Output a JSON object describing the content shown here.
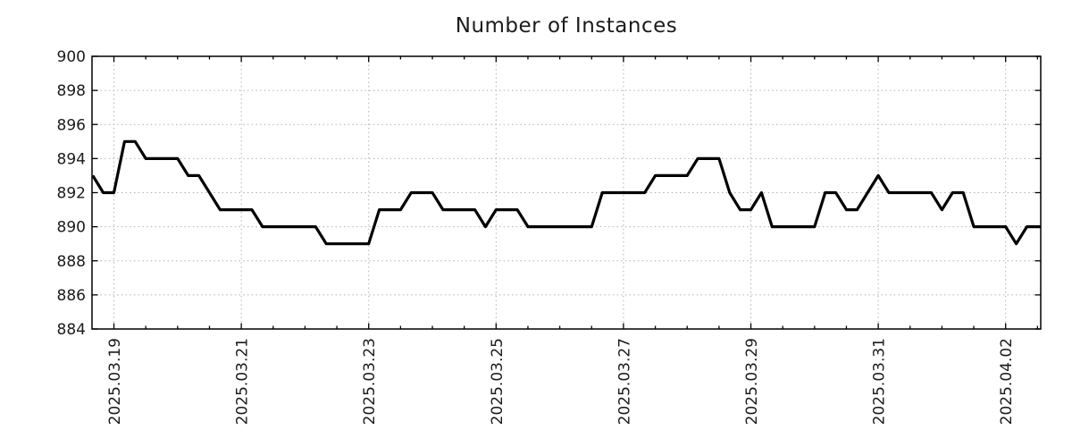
{
  "chart_data": {
    "type": "line",
    "title": "Number of Instances",
    "x_units": "days offset from first labeled tick (2025.03.19 00:00), samples every 4 hours",
    "xlim": [
      -0.344,
      14.551
    ],
    "ylim": [
      884,
      900
    ],
    "yticks": [
      884,
      886,
      888,
      890,
      892,
      894,
      896,
      898,
      900
    ],
    "xticks": [
      {
        "t": 0,
        "label": "2025.03.19"
      },
      {
        "t": 2,
        "label": "2025.03.21"
      },
      {
        "t": 4,
        "label": "2025.03.23"
      },
      {
        "t": 6,
        "label": "2025.03.25"
      },
      {
        "t": 8,
        "label": "2025.03.27"
      },
      {
        "t": 10,
        "label": "2025.03.29"
      },
      {
        "t": 12,
        "label": "2025.03.31"
      },
      {
        "t": 14,
        "label": "2025.04.02"
      }
    ],
    "minor_xtick_step": 0.5,
    "grid": true,
    "legend": "none",
    "series_name": "instances",
    "colors": {
      "line": "#000000",
      "grid": "#b2b2b2",
      "axis": "#000000",
      "text": "#1b1b1b",
      "background": "#ffffff"
    },
    "points": [
      [
        -0.333,
        893
      ],
      [
        -0.167,
        892
      ],
      [
        0,
        892
      ],
      [
        0.167,
        895
      ],
      [
        0.333,
        895
      ],
      [
        0.5,
        894
      ],
      [
        0.667,
        894
      ],
      [
        0.833,
        894
      ],
      [
        1,
        894
      ],
      [
        1.167,
        893
      ],
      [
        1.333,
        893
      ],
      [
        1.5,
        892
      ],
      [
        1.667,
        891
      ],
      [
        1.833,
        891
      ],
      [
        2,
        891
      ],
      [
        2.167,
        891
      ],
      [
        2.333,
        890
      ],
      [
        2.5,
        890
      ],
      [
        2.667,
        890
      ],
      [
        2.833,
        890
      ],
      [
        3,
        890
      ],
      [
        3.167,
        890
      ],
      [
        3.333,
        889
      ],
      [
        3.5,
        889
      ],
      [
        3.667,
        889
      ],
      [
        3.833,
        889
      ],
      [
        4,
        889
      ],
      [
        4.167,
        891
      ],
      [
        4.333,
        891
      ],
      [
        4.5,
        891
      ],
      [
        4.667,
        892
      ],
      [
        4.833,
        892
      ],
      [
        5,
        892
      ],
      [
        5.167,
        891
      ],
      [
        5.333,
        891
      ],
      [
        5.5,
        891
      ],
      [
        5.667,
        891
      ],
      [
        5.833,
        890
      ],
      [
        6,
        891
      ],
      [
        6.167,
        891
      ],
      [
        6.333,
        891
      ],
      [
        6.5,
        890
      ],
      [
        6.667,
        890
      ],
      [
        6.833,
        890
      ],
      [
        7,
        890
      ],
      [
        7.167,
        890
      ],
      [
        7.333,
        890
      ],
      [
        7.5,
        890
      ],
      [
        7.667,
        892
      ],
      [
        7.833,
        892
      ],
      [
        8,
        892
      ],
      [
        8.167,
        892
      ],
      [
        8.333,
        892
      ],
      [
        8.5,
        893
      ],
      [
        8.667,
        893
      ],
      [
        8.833,
        893
      ],
      [
        9,
        893
      ],
      [
        9.167,
        894
      ],
      [
        9.333,
        894
      ],
      [
        9.5,
        894
      ],
      [
        9.667,
        892
      ],
      [
        9.833,
        891
      ],
      [
        10,
        891
      ],
      [
        10.167,
        892
      ],
      [
        10.333,
        890
      ],
      [
        10.5,
        890
      ],
      [
        10.667,
        890
      ],
      [
        10.833,
        890
      ],
      [
        11,
        890
      ],
      [
        11.167,
        892
      ],
      [
        11.333,
        892
      ],
      [
        11.5,
        891
      ],
      [
        11.667,
        891
      ],
      [
        11.833,
        892
      ],
      [
        12,
        893
      ],
      [
        12.167,
        892
      ],
      [
        12.333,
        892
      ],
      [
        12.5,
        892
      ],
      [
        12.667,
        892
      ],
      [
        12.833,
        892
      ],
      [
        13,
        891
      ],
      [
        13.167,
        892
      ],
      [
        13.333,
        892
      ],
      [
        13.5,
        890
      ],
      [
        13.667,
        890
      ],
      [
        13.833,
        890
      ],
      [
        14,
        890
      ],
      [
        14.167,
        889
      ],
      [
        14.333,
        890
      ],
      [
        14.5,
        890
      ],
      [
        14.551,
        890
      ]
    ]
  }
}
